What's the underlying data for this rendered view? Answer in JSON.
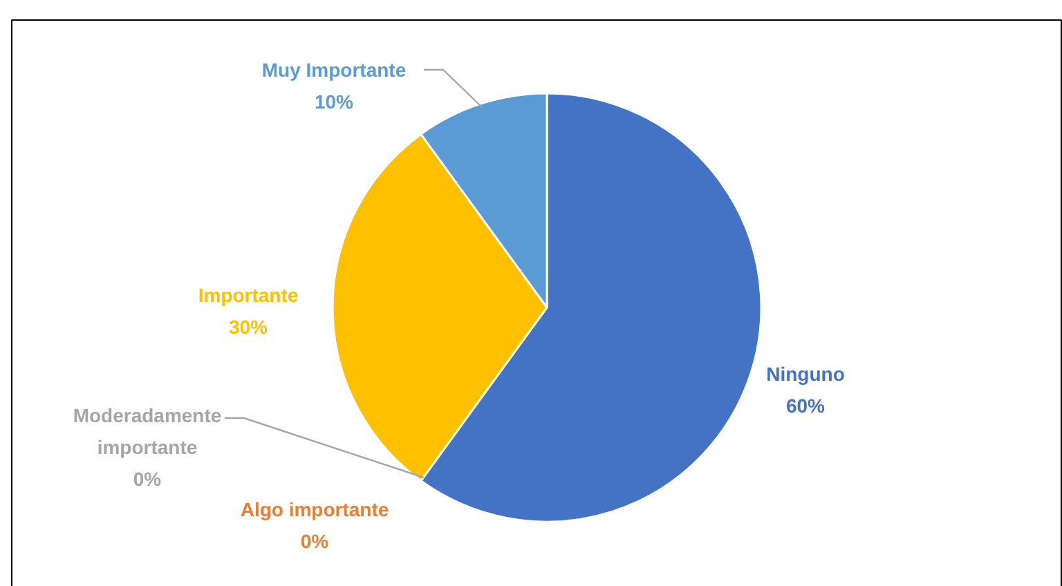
{
  "chart_data": {
    "type": "pie",
    "categories": [
      "Ninguno",
      "Algo importante",
      "Moderadamente importante",
      "Importante",
      "Muy Importante"
    ],
    "values": [
      60,
      0,
      0,
      30,
      10
    ],
    "colors": [
      "#4472c4",
      "#ed7d31",
      "#a5a5a5",
      "#ffc000",
      "#5b9bd5"
    ],
    "value_labels": [
      "60%",
      "0%",
      "0%",
      "30%",
      "10%"
    ]
  }
}
